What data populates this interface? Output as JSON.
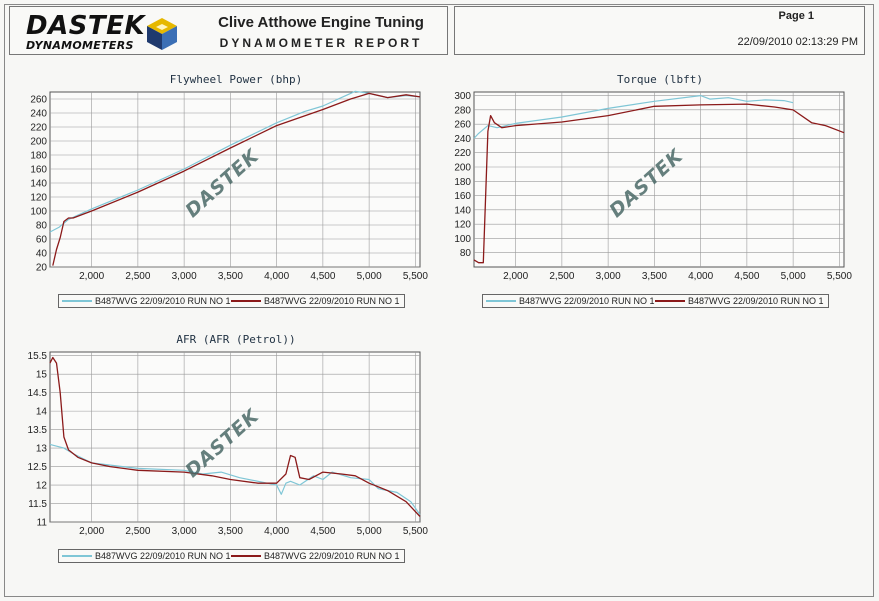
{
  "header": {
    "logo_text": "DASTEK",
    "logo_sub": "DYNAMOMETERS",
    "company": "Clive Atthowe Engine Tuning",
    "report": "DYNAMOMETER REPORT",
    "page": "Page 1",
    "datetime": "22/09/2010 02:13:29 PM"
  },
  "watermark": "DASTEK",
  "colors": {
    "series_a": "#7fc6d6",
    "series_b": "#8b1a1a",
    "grid": "#9a9a9a"
  },
  "chart_data": [
    {
      "id": "power",
      "type": "line",
      "title": "Flywheel Power (bhp)",
      "xlim": [
        1550,
        5550
      ],
      "ylim": [
        20,
        270
      ],
      "xticks": [
        2000,
        2500,
        3000,
        3500,
        4000,
        4500,
        5000,
        5500
      ],
      "xtick_labels": [
        "2,000",
        "2,500",
        "3,000",
        "3,500",
        "4,000",
        "4,500",
        "5,000",
        "5,500"
      ],
      "yticks": [
        20,
        40,
        60,
        80,
        100,
        120,
        140,
        160,
        180,
        200,
        220,
        240,
        260
      ],
      "ytick_labels": [
        "20",
        "40",
        "60",
        "80",
        "100",
        "120",
        "140",
        "160",
        "180",
        "200",
        "220",
        "240",
        "260"
      ],
      "series": [
        {
          "name": "B487WVG 22/09/2010 RUN NO 1",
          "x": [
            1550,
            1650,
            1750,
            2000,
            2500,
            3000,
            3500,
            4000,
            4300,
            4500,
            4700,
            4850,
            5000,
            5200,
            5400,
            5550
          ],
          "y": [
            70,
            77,
            88,
            103,
            130,
            160,
            194,
            226,
            242,
            250,
            262,
            271,
            268,
            262,
            265,
            263
          ]
        },
        {
          "name": "B487WVG 22/09/2010 RUN NO 1",
          "x": [
            1580,
            1620,
            1660,
            1700,
            1750,
            1800,
            2000,
            2500,
            3000,
            3500,
            4000,
            4500,
            4800,
            5000,
            5200,
            5400,
            5550
          ],
          "y": [
            22,
            45,
            62,
            85,
            90,
            90,
            100,
            127,
            157,
            190,
            222,
            245,
            260,
            268,
            262,
            266,
            263
          ]
        }
      ]
    },
    {
      "id": "torque",
      "type": "line",
      "title": "Torque (lbft)",
      "xlim": [
        1550,
        5550
      ],
      "ylim": [
        60,
        305
      ],
      "xticks": [
        2000,
        2500,
        3000,
        3500,
        4000,
        4500,
        5000,
        5500
      ],
      "xtick_labels": [
        "2,000",
        "2,500",
        "3,000",
        "3,500",
        "4,000",
        "4,500",
        "5,000",
        "5,500"
      ],
      "yticks": [
        80,
        100,
        120,
        140,
        160,
        180,
        200,
        220,
        240,
        260,
        280,
        300
      ],
      "ytick_labels": [
        "80",
        "100",
        "120",
        "140",
        "160",
        "180",
        "200",
        "220",
        "240",
        "260",
        "280",
        "300"
      ],
      "series": [
        {
          "name": "B487WVG 22/09/2010 RUN NO 1",
          "x": [
            1550,
            1600,
            1700,
            1800,
            2000,
            2500,
            3000,
            3500,
            4000,
            4100,
            4300,
            4500,
            4700,
            4900,
            5000
          ],
          "y": [
            240,
            247,
            258,
            255,
            261,
            270,
            282,
            292,
            300,
            295,
            297,
            292,
            294,
            293,
            290
          ]
        },
        {
          "name": "B487WVG 22/09/2010 RUN NO 1",
          "x": [
            1550,
            1600,
            1650,
            1700,
            1730,
            1770,
            1850,
            2000,
            2500,
            3000,
            3500,
            4000,
            4500,
            4800,
            5000,
            5200,
            5350,
            5550
          ],
          "y": [
            70,
            66,
            66,
            250,
            272,
            262,
            255,
            258,
            263,
            272,
            285,
            287,
            288,
            284,
            280,
            262,
            258,
            248
          ]
        }
      ]
    },
    {
      "id": "afr",
      "type": "line",
      "title": "AFR (AFR (Petrol))",
      "xlim": [
        1550,
        5550
      ],
      "ylim": [
        11.0,
        15.6
      ],
      "xticks": [
        2000,
        2500,
        3000,
        3500,
        4000,
        4500,
        5000,
        5500
      ],
      "xtick_labels": [
        "2,000",
        "2,500",
        "3,000",
        "3,500",
        "4,000",
        "4,500",
        "5,000",
        "5,500"
      ],
      "yticks": [
        11.0,
        11.5,
        12.0,
        12.5,
        13.0,
        13.5,
        14.0,
        14.5,
        15.0,
        15.5
      ],
      "ytick_labels": [
        "11",
        "11.5",
        "12",
        "12.5",
        "13",
        "13.5",
        "14",
        "14.5",
        "15",
        "15.5"
      ],
      "series": [
        {
          "name": "B487WVG 22/09/2010 RUN NO 1",
          "x": [
            1550,
            1700,
            1800,
            2000,
            2500,
            3000,
            3200,
            3400,
            3600,
            3900,
            4000,
            4050,
            4100,
            4150,
            4250,
            4400,
            4500,
            4600,
            4800,
            5000,
            5100,
            5300,
            5450,
            5550
          ],
          "y": [
            13.1,
            13.0,
            12.85,
            12.6,
            12.45,
            12.4,
            12.3,
            12.35,
            12.2,
            12.05,
            12.0,
            11.75,
            12.05,
            12.1,
            12.0,
            12.25,
            12.15,
            12.35,
            12.2,
            12.15,
            11.9,
            11.8,
            11.55,
            11.2
          ]
        },
        {
          "name": "B487WVG 22/09/2010 RUN NO 1",
          "x": [
            1550,
            1580,
            1620,
            1660,
            1700,
            1750,
            1850,
            2000,
            2200,
            2500,
            3000,
            3300,
            3500,
            3800,
            4000,
            4100,
            4150,
            4200,
            4250,
            4350,
            4500,
            4700,
            4850,
            5000,
            5200,
            5400,
            5550
          ],
          "y": [
            15.3,
            15.45,
            15.3,
            14.5,
            13.3,
            12.95,
            12.75,
            12.6,
            12.5,
            12.4,
            12.35,
            12.25,
            12.15,
            12.05,
            12.05,
            12.3,
            12.8,
            12.75,
            12.2,
            12.15,
            12.35,
            12.3,
            12.25,
            12.05,
            11.85,
            11.55,
            11.15
          ]
        }
      ]
    }
  ]
}
